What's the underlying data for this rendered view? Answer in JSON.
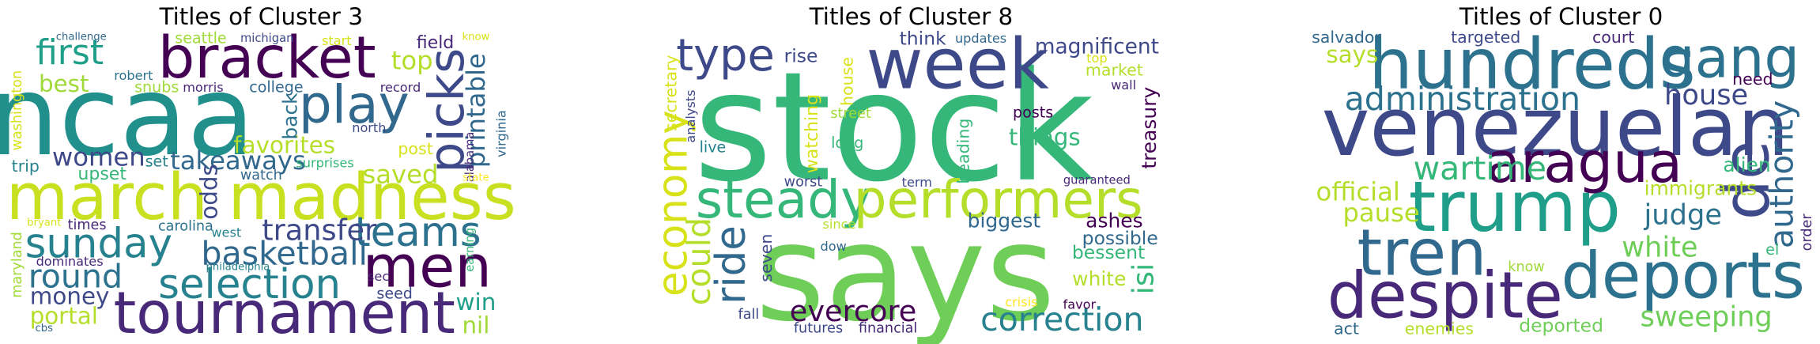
{
  "chart_data": [
    {
      "type": "wordcloud",
      "title": "Titles of Cluster 3",
      "words": [
        {
          "text": "ncaa",
          "color": "#21908d"
        },
        {
          "text": "march madness",
          "color": "#c8e020"
        },
        {
          "text": "bracket",
          "color": "#440154"
        },
        {
          "text": "tournament",
          "color": "#482878"
        },
        {
          "text": "men",
          "color": "#440154"
        },
        {
          "text": "play",
          "color": "#31688e"
        },
        {
          "text": "picks",
          "color": "#3e4989"
        },
        {
          "text": "sunday",
          "color": "#26828e"
        },
        {
          "text": "selection",
          "color": "#26828e"
        },
        {
          "text": "teams",
          "color": "#2c728e"
        },
        {
          "text": "basketball",
          "color": "#31688e"
        },
        {
          "text": "round",
          "color": "#2c728e"
        },
        {
          "text": "first",
          "color": "#1f9e89"
        },
        {
          "text": "transfer",
          "color": "#3e4989"
        },
        {
          "text": "takeaways",
          "color": "#31688e"
        },
        {
          "text": "favorites",
          "color": "#b5de2b"
        },
        {
          "text": "women",
          "color": "#3e4989"
        },
        {
          "text": "best",
          "color": "#a0da39"
        },
        {
          "text": "top",
          "color": "#b5de2b"
        },
        {
          "text": "saved",
          "color": "#b5de2b"
        },
        {
          "text": "printable",
          "color": "#31688e"
        },
        {
          "text": "money",
          "color": "#3e4989"
        },
        {
          "text": "portal",
          "color": "#b5de2b"
        },
        {
          "text": "win",
          "color": "#1f9e89"
        },
        {
          "text": "nil",
          "color": "#a0da39"
        },
        {
          "text": "odds",
          "color": "#3e4989"
        },
        {
          "text": "upset",
          "color": "#35b779"
        },
        {
          "text": "trip",
          "color": "#26828e"
        },
        {
          "text": "field",
          "color": "#482878"
        },
        {
          "text": "seattle",
          "color": "#a0da39"
        },
        {
          "text": "snubs",
          "color": "#a0da39"
        },
        {
          "text": "robert",
          "color": "#2c728e"
        },
        {
          "text": "morris",
          "color": "#482878"
        },
        {
          "text": "college",
          "color": "#31688e"
        },
        {
          "text": "michigan",
          "color": "#3e4989"
        },
        {
          "text": "start",
          "color": "#d8e219"
        },
        {
          "text": "record",
          "color": "#482878"
        },
        {
          "text": "north",
          "color": "#3e4989"
        },
        {
          "text": "back",
          "color": "#2c728e"
        },
        {
          "text": "post",
          "color": "#d8e219"
        },
        {
          "text": "surprises",
          "color": "#35b779"
        },
        {
          "text": "alabama",
          "color": "#482878"
        },
        {
          "text": "virginia",
          "color": "#31688e"
        },
        {
          "text": "washington",
          "color": "#d8e219"
        },
        {
          "text": "challenge",
          "color": "#31688e"
        },
        {
          "text": "know",
          "color": "#d8e219"
        },
        {
          "text": "set",
          "color": "#26828e"
        },
        {
          "text": "watch",
          "color": "#31688e"
        },
        {
          "text": "times",
          "color": "#482878"
        },
        {
          "text": "carolina",
          "color": "#2c728e"
        },
        {
          "text": "west",
          "color": "#26828e"
        },
        {
          "text": "maryland",
          "color": "#a0da39"
        },
        {
          "text": "bryant",
          "color": "#d8e219"
        },
        {
          "text": "dominates",
          "color": "#482878"
        },
        {
          "text": "earning",
          "color": "#35b779"
        },
        {
          "text": "seed",
          "color": "#3e4989"
        },
        {
          "text": "sec",
          "color": "#482878"
        },
        {
          "text": "philadelphia",
          "color": "#26828e"
        },
        {
          "text": "cbs",
          "color": "#31688e"
        },
        {
          "text": "state",
          "color": "#fde725"
        }
      ]
    },
    {
      "type": "wordcloud",
      "title": "Titles of Cluster 8",
      "words": [
        {
          "text": "stock",
          "color": "#35b779"
        },
        {
          "text": "says",
          "color": "#6ece58"
        },
        {
          "text": "week",
          "color": "#3e4989"
        },
        {
          "text": "steady",
          "color": "#35b779"
        },
        {
          "text": "performers",
          "color": "#b5de2b"
        },
        {
          "text": "economy",
          "color": "#d8e219"
        },
        {
          "text": "type",
          "color": "#3e4989"
        },
        {
          "text": "ride",
          "color": "#31688e"
        },
        {
          "text": "could",
          "color": "#b5de2b"
        },
        {
          "text": "evercore",
          "color": "#440154"
        },
        {
          "text": "correction",
          "color": "#26828e"
        },
        {
          "text": "magnificent",
          "color": "#3e4989"
        },
        {
          "text": "rise",
          "color": "#3e4989"
        },
        {
          "text": "think",
          "color": "#3e4989"
        },
        {
          "text": "updates",
          "color": "#31688e"
        },
        {
          "text": "house",
          "color": "#d8e219"
        },
        {
          "text": "top",
          "color": "#d8e219"
        },
        {
          "text": "market",
          "color": "#b5de2b"
        },
        {
          "text": "wall",
          "color": "#482878"
        },
        {
          "text": "treasury",
          "color": "#440154"
        },
        {
          "text": "secretary",
          "color": "#d8e219"
        },
        {
          "text": "analysts",
          "color": "#3e4989"
        },
        {
          "text": "live",
          "color": "#26828e"
        },
        {
          "text": "watching",
          "color": "#d8e219"
        },
        {
          "text": "street",
          "color": "#a0da39"
        },
        {
          "text": "long",
          "color": "#35b779"
        },
        {
          "text": "heading",
          "color": "#35b779"
        },
        {
          "text": "posts",
          "color": "#440154"
        },
        {
          "text": "things",
          "color": "#35b779"
        },
        {
          "text": "biggest",
          "color": "#31688e"
        },
        {
          "text": "ashes",
          "color": "#440154"
        },
        {
          "text": "possible",
          "color": "#31688e"
        },
        {
          "text": "bessent",
          "color": "#35b779"
        },
        {
          "text": "isi",
          "color": "#35b779"
        },
        {
          "text": "white",
          "color": "#b5de2b"
        },
        {
          "text": "guaranteed",
          "color": "#482878"
        },
        {
          "text": "worst",
          "color": "#3e4989"
        },
        {
          "text": "term",
          "color": "#3e4989"
        },
        {
          "text": "since",
          "color": "#b5de2b"
        },
        {
          "text": "seven",
          "color": "#3e4989"
        },
        {
          "text": "dow",
          "color": "#31688e"
        },
        {
          "text": "fall",
          "color": "#3e4989"
        },
        {
          "text": "futures",
          "color": "#3e4989"
        },
        {
          "text": "financial",
          "color": "#482878"
        },
        {
          "text": "crisis",
          "color": "#fde725"
        },
        {
          "text": "favor",
          "color": "#440154"
        }
      ]
    },
    {
      "type": "wordcloud",
      "title": "Titles of Cluster 0",
      "words": [
        {
          "text": "venezuelan",
          "color": "#3e4989"
        },
        {
          "text": "hundreds",
          "color": "#2c728e"
        },
        {
          "text": "trump",
          "color": "#1f9e89"
        },
        {
          "text": "despite",
          "color": "#482878"
        },
        {
          "text": "deports",
          "color": "#2c728e"
        },
        {
          "text": "tren",
          "color": "#31688e"
        },
        {
          "text": "aragua",
          "color": "#440154"
        },
        {
          "text": "gang",
          "color": "#2c728e"
        },
        {
          "text": "de",
          "color": "#3e4989"
        },
        {
          "text": "authority",
          "color": "#31688e"
        },
        {
          "text": "administration",
          "color": "#2c728e"
        },
        {
          "text": "wartime",
          "color": "#35b779"
        },
        {
          "text": "house",
          "color": "#3e4989"
        },
        {
          "text": "judge",
          "color": "#2c728e"
        },
        {
          "text": "white",
          "color": "#6ece58"
        },
        {
          "text": "sweeping",
          "color": "#6ece58"
        },
        {
          "text": "official",
          "color": "#b5de2b"
        },
        {
          "text": "pause",
          "color": "#b5de2b"
        },
        {
          "text": "says",
          "color": "#b5de2b"
        },
        {
          "text": "salvador",
          "color": "#31688e"
        },
        {
          "text": "targeted",
          "color": "#3e4989"
        },
        {
          "text": "court",
          "color": "#482878"
        },
        {
          "text": "need",
          "color": "#440154"
        },
        {
          "text": "immigrants",
          "color": "#b5de2b"
        },
        {
          "text": "alien",
          "color": "#35b779"
        },
        {
          "text": "el",
          "color": "#35b779"
        },
        {
          "text": "order",
          "color": "#482878"
        },
        {
          "text": "know",
          "color": "#a0da39"
        },
        {
          "text": "act",
          "color": "#31688e"
        },
        {
          "text": "enemies",
          "color": "#b5de2b"
        },
        {
          "text": "deported",
          "color": "#6ece58"
        }
      ]
    }
  ]
}
